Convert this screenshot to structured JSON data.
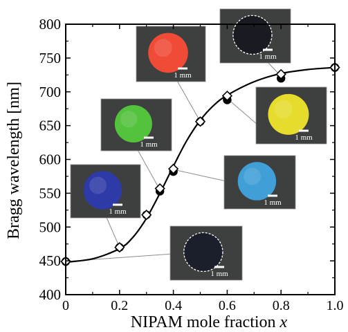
{
  "chart_data": {
    "type": "scatter",
    "title": "",
    "xlabel": "NIPAM mole fraction",
    "xlabel_var": "x",
    "ylabel": "Bragg wavelength [nm]",
    "xlim": [
      0,
      1.0
    ],
    "ylim": [
      400,
      800
    ],
    "x_ticks": [
      "0",
      "0.2",
      "0.4",
      "0.6",
      "0.8",
      "1.0"
    ],
    "y_ticks": [
      "400",
      "450",
      "500",
      "550",
      "600",
      "650",
      "700",
      "750",
      "800"
    ],
    "grid": false,
    "legend": "none",
    "series": [
      {
        "marker": "open-diamond",
        "x": [
          0,
          0.2,
          0.3,
          0.35,
          0.4,
          0.5,
          0.6,
          0.8,
          1.0
        ],
        "y": [
          449,
          470,
          518,
          557,
          586,
          656,
          694,
          726,
          736
        ]
      },
      {
        "marker": "filled-circle",
        "x": [
          0,
          0.2,
          0.3,
          0.35,
          0.4,
          0.5,
          0.6,
          0.8,
          1.0
        ],
        "y": [
          449,
          470,
          518,
          553,
          582,
          656,
          688,
          720,
          736
        ]
      }
    ],
    "fit_curve": {
      "style": "solid-black",
      "x": [
        0,
        0.1,
        0.2,
        0.25,
        0.3,
        0.35,
        0.4,
        0.45,
        0.5,
        0.55,
        0.6,
        0.7,
        0.8,
        0.9,
        1.0
      ],
      "y": [
        448,
        453,
        468,
        485,
        513,
        550,
        590,
        628,
        658,
        680,
        695,
        715,
        727,
        733,
        736
      ]
    },
    "insets": [
      {
        "id": "x00",
        "color": "#1b1f2b",
        "border": "dashed",
        "scale": "1 mm",
        "point": [
          0,
          449
        ]
      },
      {
        "id": "x02",
        "color": "#2d3aa8",
        "border": "none",
        "scale": "1 mm",
        "point": [
          0.2,
          470
        ]
      },
      {
        "id": "x035",
        "color": "#53c23d",
        "border": "none",
        "scale": "1 mm",
        "point": [
          0.35,
          555
        ]
      },
      {
        "id": "x05",
        "color": "#ef4b36",
        "border": "none",
        "scale": "1 mm",
        "point": [
          0.5,
          656
        ]
      },
      {
        "id": "x06",
        "color": "#e6dc2c",
        "border": "none",
        "scale": "1 mm",
        "point": [
          0.6,
          690
        ]
      },
      {
        "id": "x04",
        "color": "#3f9fd6",
        "border": "none",
        "scale": "1 mm",
        "point": [
          0.4,
          585
        ]
      },
      {
        "id": "x10",
        "color": "#1a1b22",
        "border": "dashed",
        "scale": "1 mm",
        "point": [
          0.8,
          723
        ]
      }
    ]
  }
}
